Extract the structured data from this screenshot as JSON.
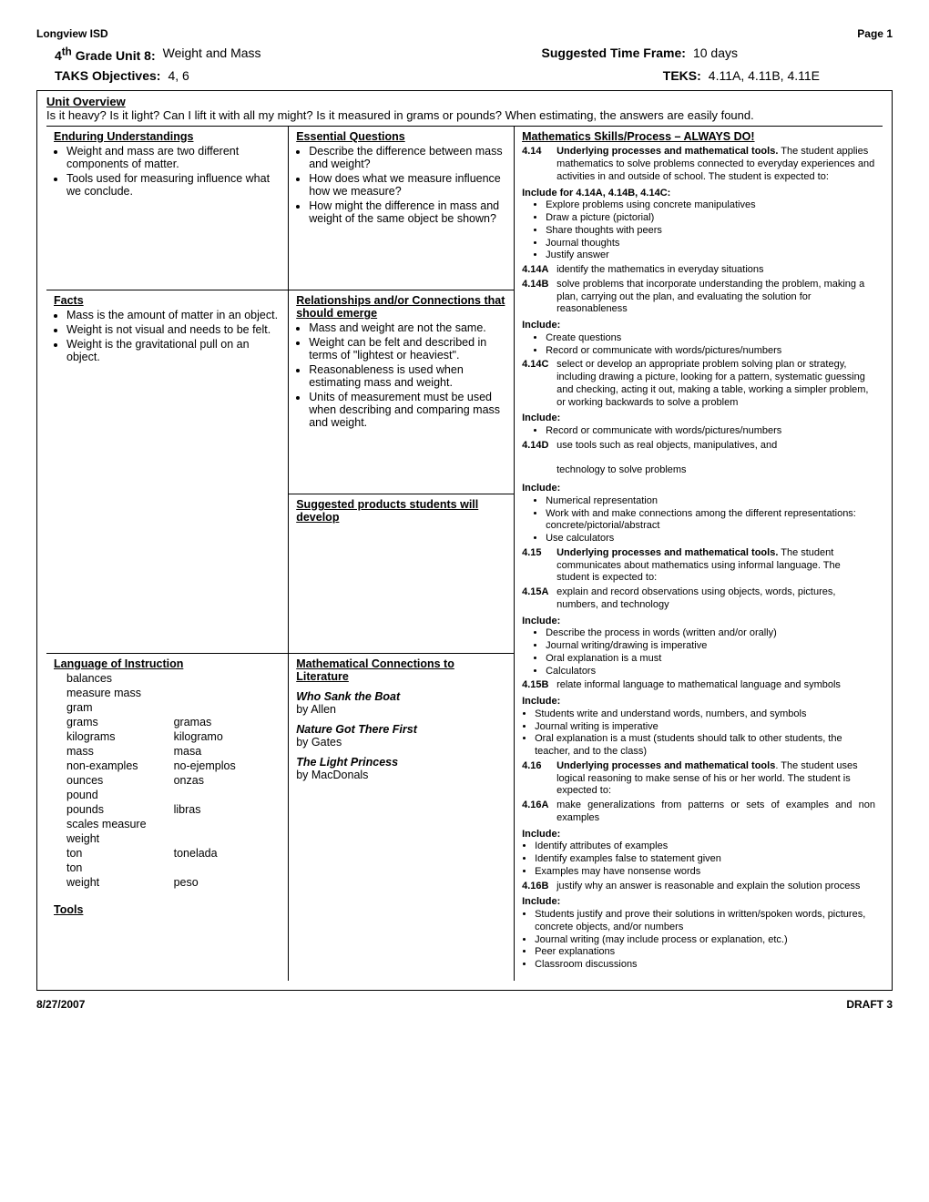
{
  "header": {
    "org": "Longview ISD",
    "page": "Page 1"
  },
  "info": {
    "unit_label": "4th Grade Unit 8:",
    "unit_title": "Weight and Mass",
    "time_label": "Suggested Time Frame:",
    "time_value": "10 days",
    "taks_label": "TAKS Objectives:",
    "taks_value": "4, 6",
    "teks_label": "TEKS:",
    "teks_value": "4.11A, 4.11B, 4.11E"
  },
  "overview": {
    "heading": "Unit Overview",
    "text": "Is it heavy? Is it light? Can I lift it with all my might? Is it measured in grams or pounds? When estimating, the answers are easily found."
  },
  "c1": {
    "enduring_h": "Enduring Understandings",
    "enduring": [
      "Weight and mass are two different components of matter.",
      "Tools used for measuring influence what we conclude."
    ],
    "facts_h": "Facts",
    "facts": [
      "Mass is the amount of matter in an object.",
      "Weight is not visual and needs to be felt.",
      "Weight is the gravitational pull on an object."
    ],
    "lang_h": "Language of Instruction",
    "vocab": [
      [
        "balances",
        ""
      ],
      [
        "measure mass",
        ""
      ],
      [
        "gram",
        ""
      ],
      [
        "grams",
        "gramas"
      ],
      [
        "kilograms",
        "kilogramo"
      ],
      [
        "mass",
        "masa"
      ],
      [
        "non-examples",
        "no-ejemplos"
      ],
      [
        "ounces",
        "onzas"
      ],
      [
        "pound",
        ""
      ],
      [
        "pounds",
        "libras"
      ],
      [
        "scales measure",
        ""
      ],
      [
        "weight",
        ""
      ],
      [
        "ton",
        "tonelada"
      ],
      [
        "ton",
        ""
      ],
      [
        "weight",
        "peso"
      ]
    ],
    "tools_h": "Tools"
  },
  "c2": {
    "eq_h": "Essential Questions",
    "eq": [
      "Describe the difference between mass and weight?",
      "How does what we measure influence how we measure?",
      "How might the difference in mass and weight of the same object be shown?"
    ],
    "rel_h": "Relationships and/or Connections that should emerge",
    "rel": [
      "Mass and weight are not the same.",
      "Weight can be felt and described in terms of \"lightest or heaviest\".",
      "Reasonableness is used when estimating mass and weight.",
      "Units of measurement must be used when describing and comparing mass and weight."
    ],
    "sugg_h": "Suggested products students will develop",
    "lit_h": "Mathematical Connections to Literature",
    "books": [
      {
        "title": "Who Sank the Boat",
        "author": "by Allen"
      },
      {
        "title": "Nature Got There First",
        "author": "by Gates"
      },
      {
        "title": "The Light Princess",
        "author": "by MacDonals"
      }
    ]
  },
  "c3": {
    "title": "Mathematics Skills/Process – ALWAYS DO!",
    "s414": {
      "num": "4.14",
      "txt": "Underlying processes and mathematical tools. The student applies mathematics to solve problems connected to everyday experiences and activities in and outside of school. The student is expected to:"
    },
    "inc414": "Include for 4.14A, 4.14B, 4.14C:",
    "l414": [
      "Explore problems using concrete manipulatives",
      "Draw a picture (pictorial)",
      "Share thoughts with peers",
      "Journal thoughts",
      "Justify answer"
    ],
    "s414a": {
      "num": "4.14A",
      "txt": "identify the mathematics in everyday situations"
    },
    "s414b": {
      "num": "4.14B",
      "txt": "solve problems that incorporate understanding the problem, making a plan, carrying out the plan, and evaluating the solution for reasonableness"
    },
    "inc1": "Include:",
    "l414b": [
      "Create questions",
      "Record or communicate with words/pictures/numbers"
    ],
    "s414c": {
      "num": "4.14C",
      "txt": "select or develop an appropriate problem solving plan or strategy, including drawing a picture, looking for a pattern, systematic guessing and checking, acting it out, making a table, working a simpler problem, or working backwards to solve a problem"
    },
    "l414c": [
      "Record or communicate with words/pictures/numbers"
    ],
    "s414d": {
      "num": "4.14D",
      "txt": "use tools such as real objects, manipulatives, and technology to solve problems"
    },
    "l414d": [
      "Numerical representation",
      "Work with and make connections among the different representations: concrete/pictorial/abstract",
      "Use calculators"
    ],
    "s415": {
      "num": "4.15",
      "txt": "Underlying processes and mathematical tools. The student communicates about mathematics using informal language.  The student is expected to:"
    },
    "s415a": {
      "num": "4.15A",
      "txt": "explain and record observations using objects, words, pictures, numbers, and technology"
    },
    "l415a": [
      "Describe the process in words (written and/or orally)",
      "Journal writing/drawing is imperative",
      "Oral explanation is a must",
      "Calculators"
    ],
    "s415b": {
      "num": "4.15B",
      "txt": "relate informal language to mathematical language and symbols"
    },
    "l415b": [
      "Students write and understand words, numbers, and symbols",
      "Journal writing is imperative",
      "Oral explanation is a must (students should talk to other students, the teacher, and to the class)"
    ],
    "s416": {
      "num": "4.16",
      "txt": "Underlying processes and mathematical tools. The student uses logical reasoning to make sense of his or her world.  The student is expected to:"
    },
    "s416a": {
      "num": "4.16A",
      "txt": "make generalizations from patterns or sets of examples and non examples"
    },
    "l416a": [
      "Identify attributes of examples",
      "Identify examples false to statement given",
      "Examples may have nonsense words"
    ],
    "s416b": {
      "num": "4.16B",
      "txt": "justify why an answer is reasonable and explain the solution process"
    },
    "l416b": [
      "Students justify and prove their solutions in written/spoken words, pictures, concrete objects, and/or numbers",
      "Journal writing (may include process or explanation, etc.)",
      "Peer explanations",
      "Classroom discussions"
    ]
  },
  "footer": {
    "date": "8/27/2007",
    "draft": "DRAFT 3"
  }
}
